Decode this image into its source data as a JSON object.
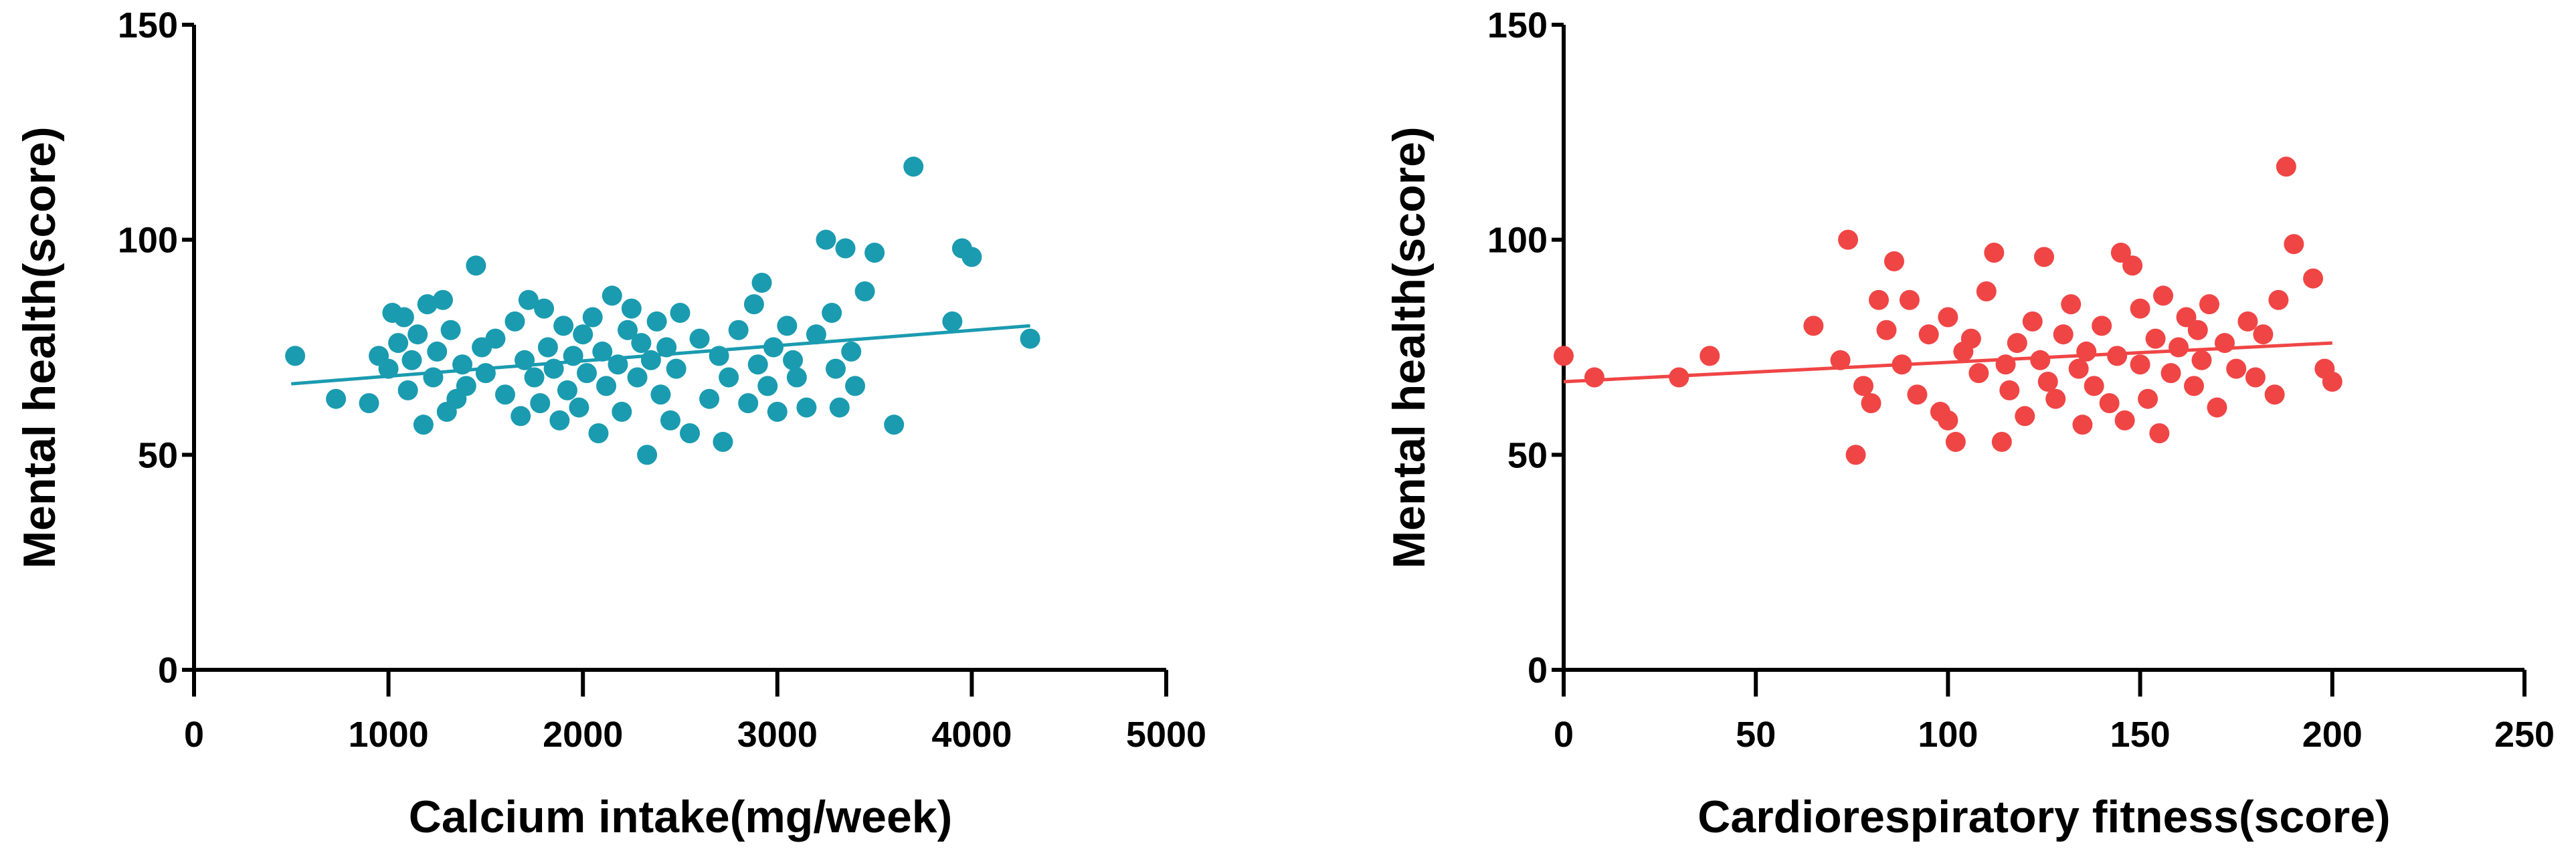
{
  "chart_data": [
    {
      "type": "scatter",
      "xlabel": "Calcium intake(mg/week)",
      "ylabel": "Mental health(score)",
      "color": "#1a9bb0",
      "xlim": [
        0,
        5000
      ],
      "xticks": [
        0,
        1000,
        2000,
        3000,
        4000,
        5000
      ],
      "ylim": [
        0,
        150
      ],
      "yticks": [
        0,
        50,
        100,
        150
      ],
      "x": [
        520,
        730,
        900,
        950,
        1000,
        1020,
        1050,
        1080,
        1100,
        1120,
        1150,
        1180,
        1200,
        1230,
        1250,
        1280,
        1300,
        1320,
        1350,
        1380,
        1400,
        1450,
        1480,
        1500,
        1550,
        1600,
        1650,
        1680,
        1700,
        1720,
        1750,
        1780,
        1800,
        1820,
        1850,
        1880,
        1900,
        1920,
        1950,
        1980,
        2000,
        2020,
        2050,
        2080,
        2100,
        2120,
        2150,
        2180,
        2200,
        2230,
        2250,
        2280,
        2300,
        2330,
        2350,
        2380,
        2400,
        2430,
        2450,
        2480,
        2500,
        2550,
        2600,
        2650,
        2700,
        2720,
        2750,
        2800,
        2850,
        2880,
        2900,
        2920,
        2950,
        2980,
        3000,
        3050,
        3080,
        3100,
        3150,
        3200,
        3250,
        3280,
        3300,
        3320,
        3350,
        3380,
        3400,
        3450,
        3500,
        3600,
        3700,
        3900,
        3950,
        4000,
        4300
      ],
      "values": [
        73,
        63,
        62,
        73,
        70,
        83,
        76,
        82,
        65,
        72,
        78,
        57,
        85,
        68,
        74,
        86,
        60,
        79,
        63,
        71,
        66,
        94,
        75,
        69,
        77,
        64,
        81,
        59,
        72,
        86,
        68,
        62,
        84,
        75,
        70,
        58,
        80,
        65,
        73,
        61,
        78,
        69,
        82,
        55,
        74,
        66,
        87,
        71,
        60,
        79,
        84,
        68,
        76,
        50,
        72,
        81,
        64,
        75,
        58,
        70,
        83,
        55,
        77,
        63,
        73,
        53,
        68,
        79,
        62,
        85,
        71,
        90,
        66,
        75,
        60,
        80,
        72,
        68,
        61,
        78,
        100,
        83,
        70,
        61,
        98,
        74,
        66,
        88,
        97,
        57,
        117,
        81,
        98,
        96,
        77
      ],
      "trend": {
        "x": [
          500,
          4300
        ],
        "values": [
          66.5,
          80
        ]
      }
    },
    {
      "type": "scatter",
      "xlabel": "Cardiorespiratory fitness(score)",
      "ylabel": "Mental health(score)",
      "color": "#f04545",
      "xlim": [
        0,
        250
      ],
      "xticks": [
        0,
        50,
        100,
        150,
        200,
        250
      ],
      "ylim": [
        0,
        150
      ],
      "yticks": [
        0,
        50,
        100,
        150
      ],
      "x": [
        0,
        8,
        30,
        38,
        65,
        72,
        74,
        76,
        78,
        80,
        82,
        84,
        86,
        88,
        90,
        92,
        95,
        98,
        100,
        100,
        102,
        104,
        106,
        108,
        110,
        112,
        114,
        115,
        116,
        118,
        120,
        122,
        124,
        125,
        126,
        128,
        130,
        132,
        134,
        135,
        136,
        138,
        140,
        142,
        144,
        145,
        146,
        148,
        150,
        150,
        152,
        154,
        155,
        156,
        158,
        160,
        162,
        164,
        165,
        166,
        168,
        170,
        172,
        175,
        178,
        180,
        182,
        185,
        186,
        188,
        190,
        195,
        198,
        200
      ],
      "values": [
        73,
        68,
        68,
        73,
        80,
        72,
        100,
        50,
        66,
        62,
        86,
        79,
        95,
        71,
        86,
        64,
        78,
        60,
        82,
        58,
        53,
        74,
        77,
        69,
        88,
        97,
        53,
        71,
        65,
        76,
        59,
        81,
        72,
        96,
        67,
        63,
        78,
        85,
        70,
        57,
        74,
        66,
        80,
        62,
        73,
        97,
        58,
        94,
        71,
        84,
        63,
        77,
        55,
        87,
        69,
        75,
        82,
        66,
        79,
        72,
        85,
        61,
        76,
        70,
        81,
        68,
        78,
        64,
        86,
        117,
        99,
        91,
        70,
        67
      ],
      "trend": {
        "x": [
          0,
          200
        ],
        "values": [
          67,
          76
        ]
      }
    }
  ]
}
